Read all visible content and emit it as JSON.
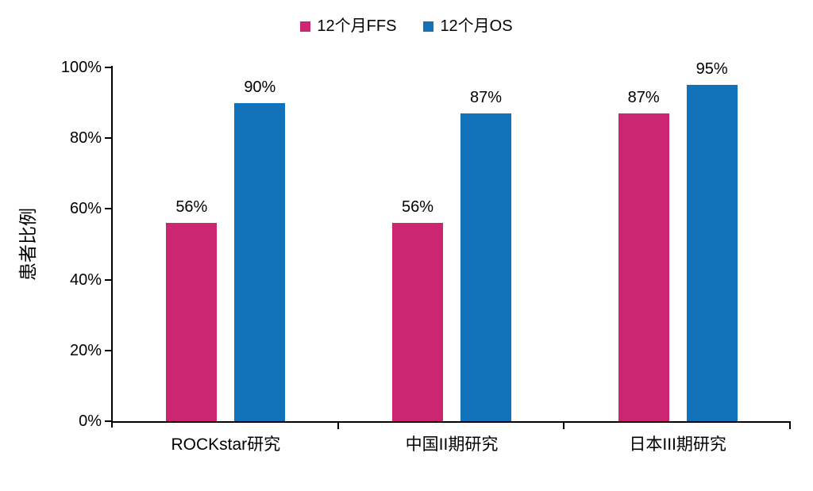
{
  "chart_data": {
    "type": "bar",
    "title": "",
    "categories": [
      "ROCKstar研究",
      "中国II期研究",
      "日本III期研究"
    ],
    "series": [
      {
        "name": "12个月FFS",
        "color": "#CC2673",
        "values": [
          56,
          56,
          87
        ],
        "data_labels": [
          "56%",
          "56%",
          "87%"
        ]
      },
      {
        "name": "12个月OS",
        "color": "#1272B9",
        "values": [
          90,
          87,
          95
        ],
        "data_labels": [
          "90%",
          "87%",
          "95%"
        ]
      }
    ],
    "ylabel": "患者比例",
    "xlabel": "",
    "ylim": [
      0,
      100
    ],
    "yticks": [
      {
        "value": 0,
        "label": "0%"
      },
      {
        "value": 20,
        "label": "20%"
      },
      {
        "value": 40,
        "label": "40%"
      },
      {
        "value": 60,
        "label": "60%"
      },
      {
        "value": 80,
        "label": "80%"
      },
      {
        "value": 100,
        "label": "100%"
      }
    ],
    "grid": false,
    "legend_position": "top"
  },
  "colors": {
    "background": "#ffffff",
    "axis": "#000000",
    "text": "#000000"
  }
}
